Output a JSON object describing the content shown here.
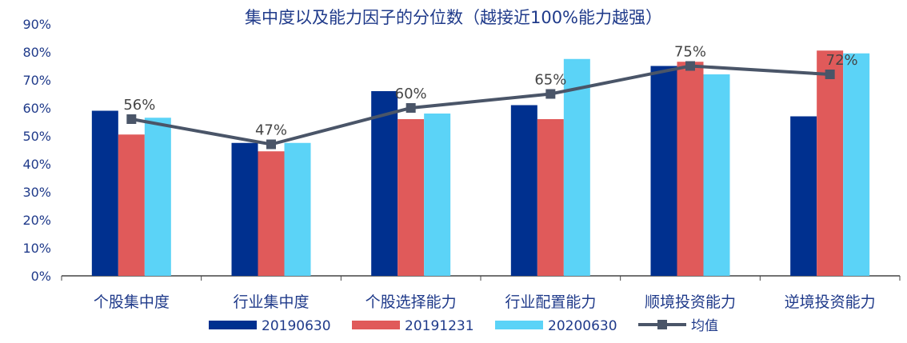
{
  "chart_data": {
    "type": "bar",
    "title": "集中度以及能力因子的分位数（越接近100%能力越强）",
    "categories": [
      "个股集中度",
      "行业集中度",
      "个股选择能力",
      "行业配置能力",
      "顺境投资能力",
      "逆境投资能力"
    ],
    "series": [
      {
        "name": "20190630",
        "kind": "bar",
        "color": "#00308f",
        "values": [
          59,
          47.5,
          66,
          61,
          75,
          57
        ]
      },
      {
        "name": "20191231",
        "kind": "bar",
        "color": "#e05a5a",
        "values": [
          50.5,
          44.5,
          56,
          56,
          76.5,
          80.5
        ]
      },
      {
        "name": "20200630",
        "kind": "bar",
        "color": "#5bd3f7",
        "values": [
          56.5,
          47.5,
          58,
          77.5,
          72,
          79.5
        ]
      },
      {
        "name": "均值",
        "kind": "line",
        "color": "#4a5568",
        "values": [
          56,
          47,
          60,
          65,
          75,
          72
        ]
      }
    ],
    "data_labels": [
      "56%",
      "47%",
      "60%",
      "65%",
      "75%",
      "72%"
    ],
    "y_ticks": [
      "0%",
      "10%",
      "20%",
      "30%",
      "40%",
      "50%",
      "60%",
      "70%",
      "80%",
      "90%"
    ],
    "ylim": [
      0,
      90
    ],
    "ylabel": "",
    "xlabel": "",
    "grid": false,
    "legend_position": "bottom"
  }
}
